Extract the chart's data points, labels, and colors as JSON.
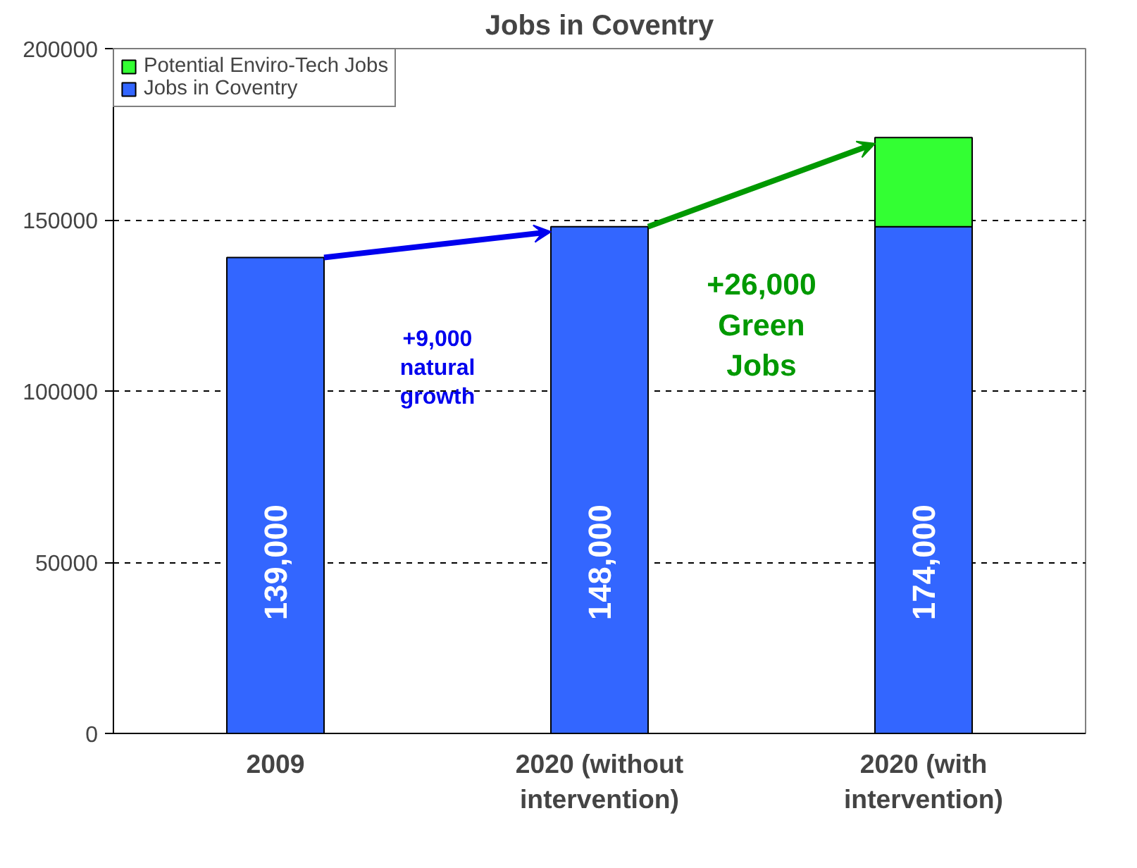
{
  "chart_data": {
    "type": "bar",
    "title": "Jobs in Coventry",
    "categories": [
      "2009",
      "2020 (without intervention)",
      "2020 (with intervention)"
    ],
    "stacked": true,
    "series": [
      {
        "name": "Jobs in Coventry",
        "color": "#3366ff",
        "values": [
          139000,
          148000,
          148000
        ]
      },
      {
        "name": "Potential Enviro-Tech Jobs",
        "color": "#33ff33",
        "values": [
          null,
          null,
          26000
        ]
      }
    ],
    "totals": [
      "139,000",
      "148,000",
      "174,000"
    ],
    "annotations": [
      "+9,000\nnatural\ngrowth",
      "+26,000\nGreen\nJobs"
    ],
    "ylim": [
      0,
      200000
    ],
    "yticks": [
      0,
      50000,
      100000,
      150000,
      200000
    ],
    "grid": "y",
    "legend": "top left"
  }
}
